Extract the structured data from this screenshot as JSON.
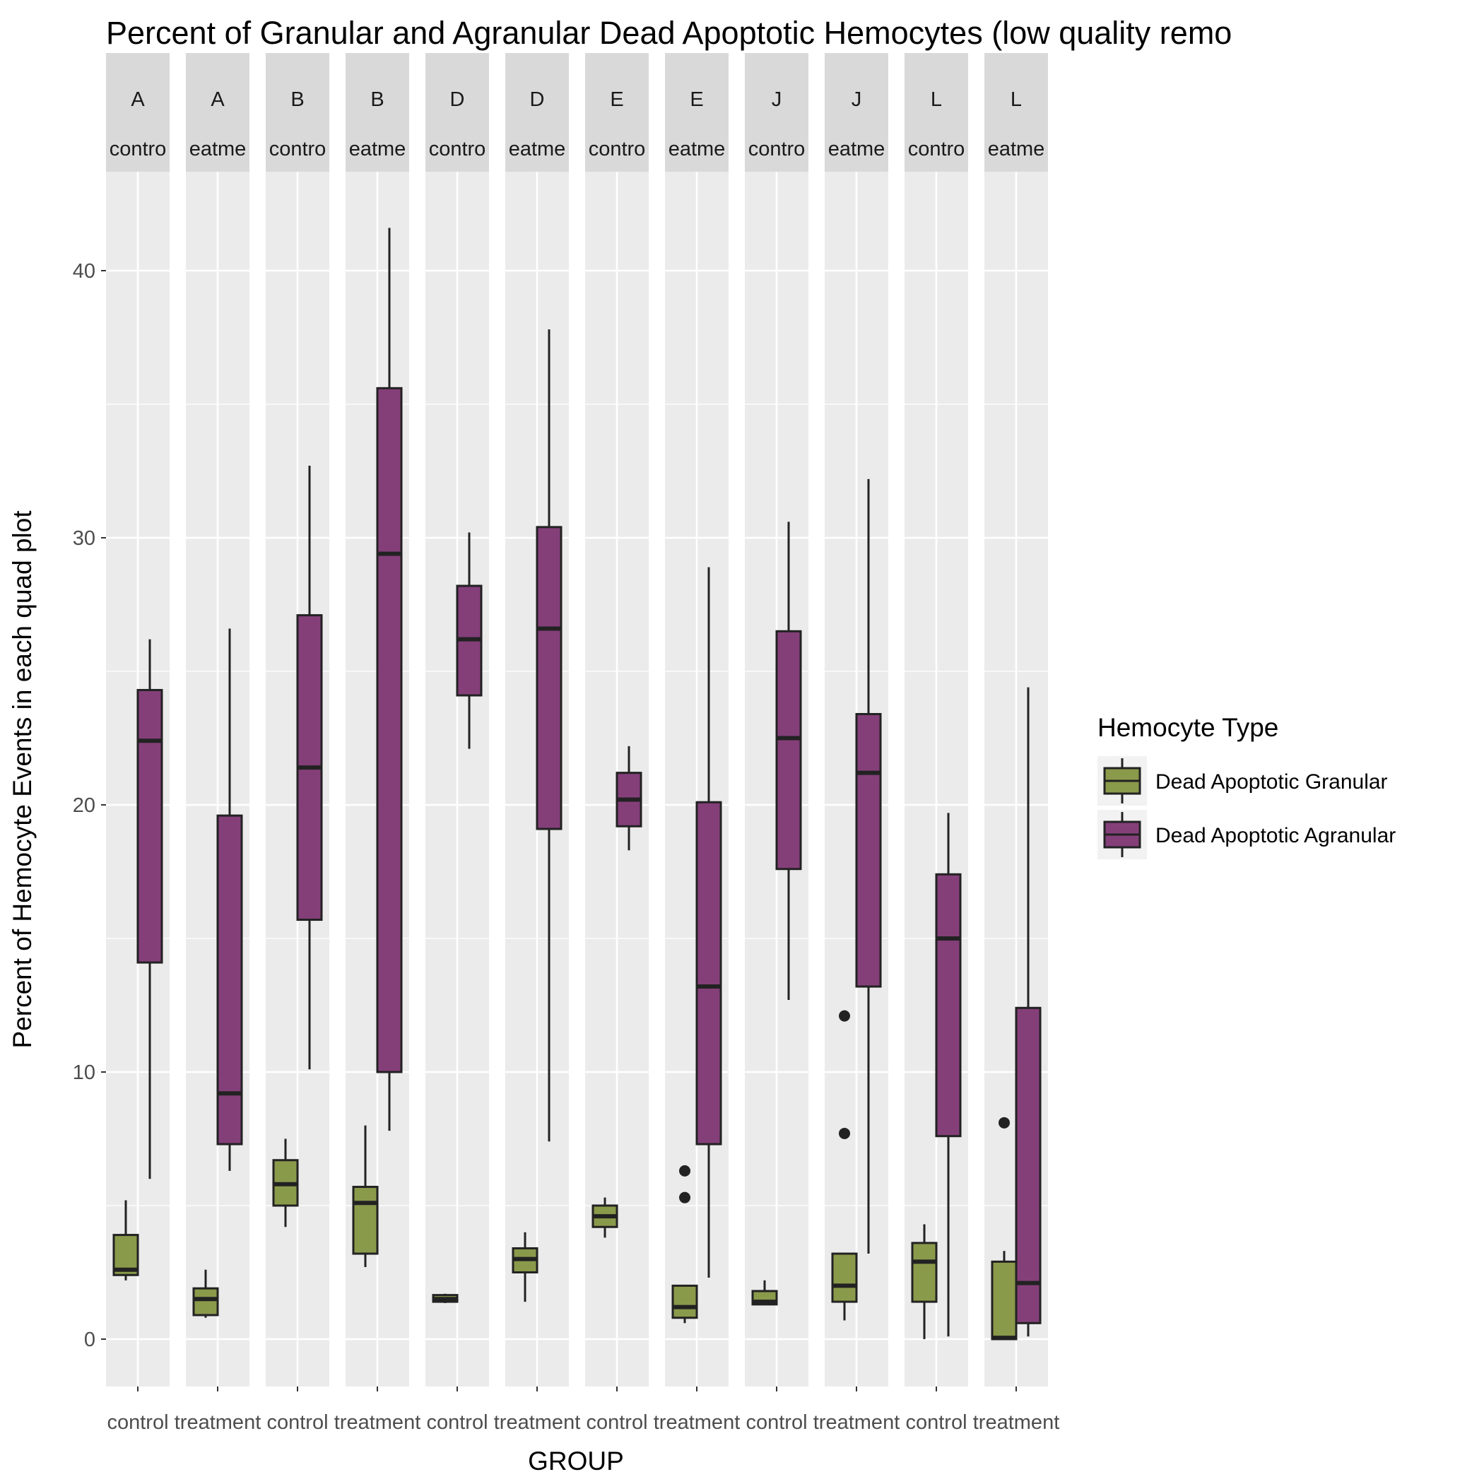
{
  "chart_data": {
    "type": "box",
    "title": "Percent of Granular and Agranular Dead Apoptotic Hemocytes (low quality remo",
    "xlabel": "GROUP",
    "ylabel": "Percent of Hemocyte Events in each quad plot",
    "ylim": [
      -2,
      43
    ],
    "yticks": [
      0,
      10,
      20,
      30,
      40
    ],
    "legend": {
      "title": "Hemocyte Type",
      "position": "right",
      "entries": [
        {
          "label": "Dead Apoptotic Granular",
          "color": "#8a9a4b"
        },
        {
          "label": "Dead Apoptotic Agranular",
          "color": "#843f79"
        }
      ]
    },
    "facets": [
      {
        "site": "A",
        "group": "control",
        "group_label": "control",
        "strip_group": "contro",
        "boxes": [
          {
            "series": "Dead Apoptotic Granular",
            "whisker_low": 2.2,
            "q1": 2.4,
            "median": 2.6,
            "q3": 3.9,
            "whisker_high": 5.2,
            "outliers": []
          },
          {
            "series": "Dead Apoptotic Agranular",
            "whisker_low": 6.0,
            "q1": 14.1,
            "median": 22.4,
            "q3": 24.3,
            "whisker_high": 26.2,
            "outliers": []
          }
        ]
      },
      {
        "site": "A",
        "group": "treatment",
        "group_label": "treatment",
        "strip_group": "eatme",
        "boxes": [
          {
            "series": "Dead Apoptotic Granular",
            "whisker_low": 0.8,
            "q1": 0.9,
            "median": 1.5,
            "q3": 1.9,
            "whisker_high": 2.6,
            "outliers": []
          },
          {
            "series": "Dead Apoptotic Agranular",
            "whisker_low": 6.3,
            "q1": 7.3,
            "median": 9.2,
            "q3": 19.6,
            "whisker_high": 26.6,
            "outliers": []
          }
        ]
      },
      {
        "site": "B",
        "group": "control",
        "group_label": "control",
        "strip_group": "contro",
        "boxes": [
          {
            "series": "Dead Apoptotic Granular",
            "whisker_low": 4.2,
            "q1": 5.0,
            "median": 5.8,
            "q3": 6.7,
            "whisker_high": 7.5,
            "outliers": []
          },
          {
            "series": "Dead Apoptotic Agranular",
            "whisker_low": 10.1,
            "q1": 15.7,
            "median": 21.4,
            "q3": 27.1,
            "whisker_high": 32.7,
            "outliers": []
          }
        ]
      },
      {
        "site": "B",
        "group": "treatment",
        "group_label": "treatment",
        "strip_group": "eatme",
        "boxes": [
          {
            "series": "Dead Apoptotic Granular",
            "whisker_low": 2.7,
            "q1": 3.2,
            "median": 5.1,
            "q3": 5.7,
            "whisker_high": 8.0,
            "outliers": []
          },
          {
            "series": "Dead Apoptotic Agranular",
            "whisker_low": 7.8,
            "q1": 10.0,
            "median": 29.4,
            "q3": 35.6,
            "whisker_high": 41.6,
            "outliers": []
          }
        ]
      },
      {
        "site": "D",
        "group": "control",
        "group_label": "control",
        "strip_group": "contro",
        "boxes": [
          {
            "series": "Dead Apoptotic Granular",
            "whisker_low": 1.35,
            "q1": 1.4,
            "median": 1.5,
            "q3": 1.65,
            "whisker_high": 1.7,
            "outliers": []
          },
          {
            "series": "Dead Apoptotic Agranular",
            "whisker_low": 22.1,
            "q1": 24.1,
            "median": 26.2,
            "q3": 28.2,
            "whisker_high": 30.2,
            "outliers": []
          }
        ]
      },
      {
        "site": "D",
        "group": "treatment",
        "group_label": "treatment",
        "strip_group": "eatme",
        "boxes": [
          {
            "series": "Dead Apoptotic Granular",
            "whisker_low": 1.4,
            "q1": 2.5,
            "median": 3.0,
            "q3": 3.4,
            "whisker_high": 4.0,
            "outliers": []
          },
          {
            "series": "Dead Apoptotic Agranular",
            "whisker_low": 7.4,
            "q1": 19.1,
            "median": 26.6,
            "q3": 30.4,
            "whisker_high": 37.8,
            "outliers": []
          }
        ]
      },
      {
        "site": "E",
        "group": "control",
        "group_label": "control",
        "strip_group": "contro",
        "boxes": [
          {
            "series": "Dead Apoptotic Granular",
            "whisker_low": 3.8,
            "q1": 4.2,
            "median": 4.6,
            "q3": 5.0,
            "whisker_high": 5.3,
            "outliers": []
          },
          {
            "series": "Dead Apoptotic Agranular",
            "whisker_low": 18.3,
            "q1": 19.2,
            "median": 20.2,
            "q3": 21.2,
            "whisker_high": 22.2,
            "outliers": []
          }
        ]
      },
      {
        "site": "E",
        "group": "treatment",
        "group_label": "treatment",
        "strip_group": "eatme",
        "boxes": [
          {
            "series": "Dead Apoptotic Granular",
            "whisker_low": 0.6,
            "q1": 0.8,
            "median": 1.2,
            "q3": 2.0,
            "whisker_high": 2.0,
            "outliers": [
              5.3,
              6.3
            ]
          },
          {
            "series": "Dead Apoptotic Agranular",
            "whisker_low": 2.3,
            "q1": 7.3,
            "median": 13.2,
            "q3": 20.1,
            "whisker_high": 28.9,
            "outliers": []
          }
        ]
      },
      {
        "site": "J",
        "group": "control",
        "group_label": "control",
        "strip_group": "contro",
        "boxes": [
          {
            "series": "Dead Apoptotic Granular",
            "whisker_low": 1.3,
            "q1": 1.3,
            "median": 1.4,
            "q3": 1.8,
            "whisker_high": 2.2,
            "outliers": []
          },
          {
            "series": "Dead Apoptotic Agranular",
            "whisker_low": 12.7,
            "q1": 17.6,
            "median": 22.5,
            "q3": 26.5,
            "whisker_high": 30.6,
            "outliers": []
          }
        ]
      },
      {
        "site": "J",
        "group": "treatment",
        "group_label": "treatment",
        "strip_group": "eatme",
        "boxes": [
          {
            "series": "Dead Apoptotic Granular",
            "whisker_low": 0.7,
            "q1": 1.4,
            "median": 2.0,
            "q3": 3.2,
            "whisker_high": 3.2,
            "outliers": [
              7.7,
              12.1
            ]
          },
          {
            "series": "Dead Apoptotic Agranular",
            "whisker_low": 3.2,
            "q1": 13.2,
            "median": 21.2,
            "q3": 23.4,
            "whisker_high": 32.2,
            "outliers": []
          }
        ]
      },
      {
        "site": "L",
        "group": "control",
        "group_label": "control",
        "strip_group": "contro",
        "boxes": [
          {
            "series": "Dead Apoptotic Granular",
            "whisker_low": 0.0,
            "q1": 1.4,
            "median": 2.9,
            "q3": 3.6,
            "whisker_high": 4.3,
            "outliers": []
          },
          {
            "series": "Dead Apoptotic Agranular",
            "whisker_low": 0.1,
            "q1": 7.6,
            "median": 15.0,
            "q3": 17.4,
            "whisker_high": 19.7,
            "outliers": []
          }
        ]
      },
      {
        "site": "L",
        "group": "treatment",
        "group_label": "treatment",
        "strip_group": "eatme",
        "boxes": [
          {
            "series": "Dead Apoptotic Granular",
            "whisker_low": 0.0,
            "q1": 0.0,
            "median": 0.05,
            "q3": 2.9,
            "whisker_high": 3.3,
            "outliers": [
              8.1
            ]
          },
          {
            "series": "Dead Apoptotic Agranular",
            "whisker_low": 0.1,
            "q1": 0.6,
            "median": 2.1,
            "q3": 12.4,
            "whisker_high": 24.4,
            "outliers": []
          }
        ]
      }
    ]
  }
}
